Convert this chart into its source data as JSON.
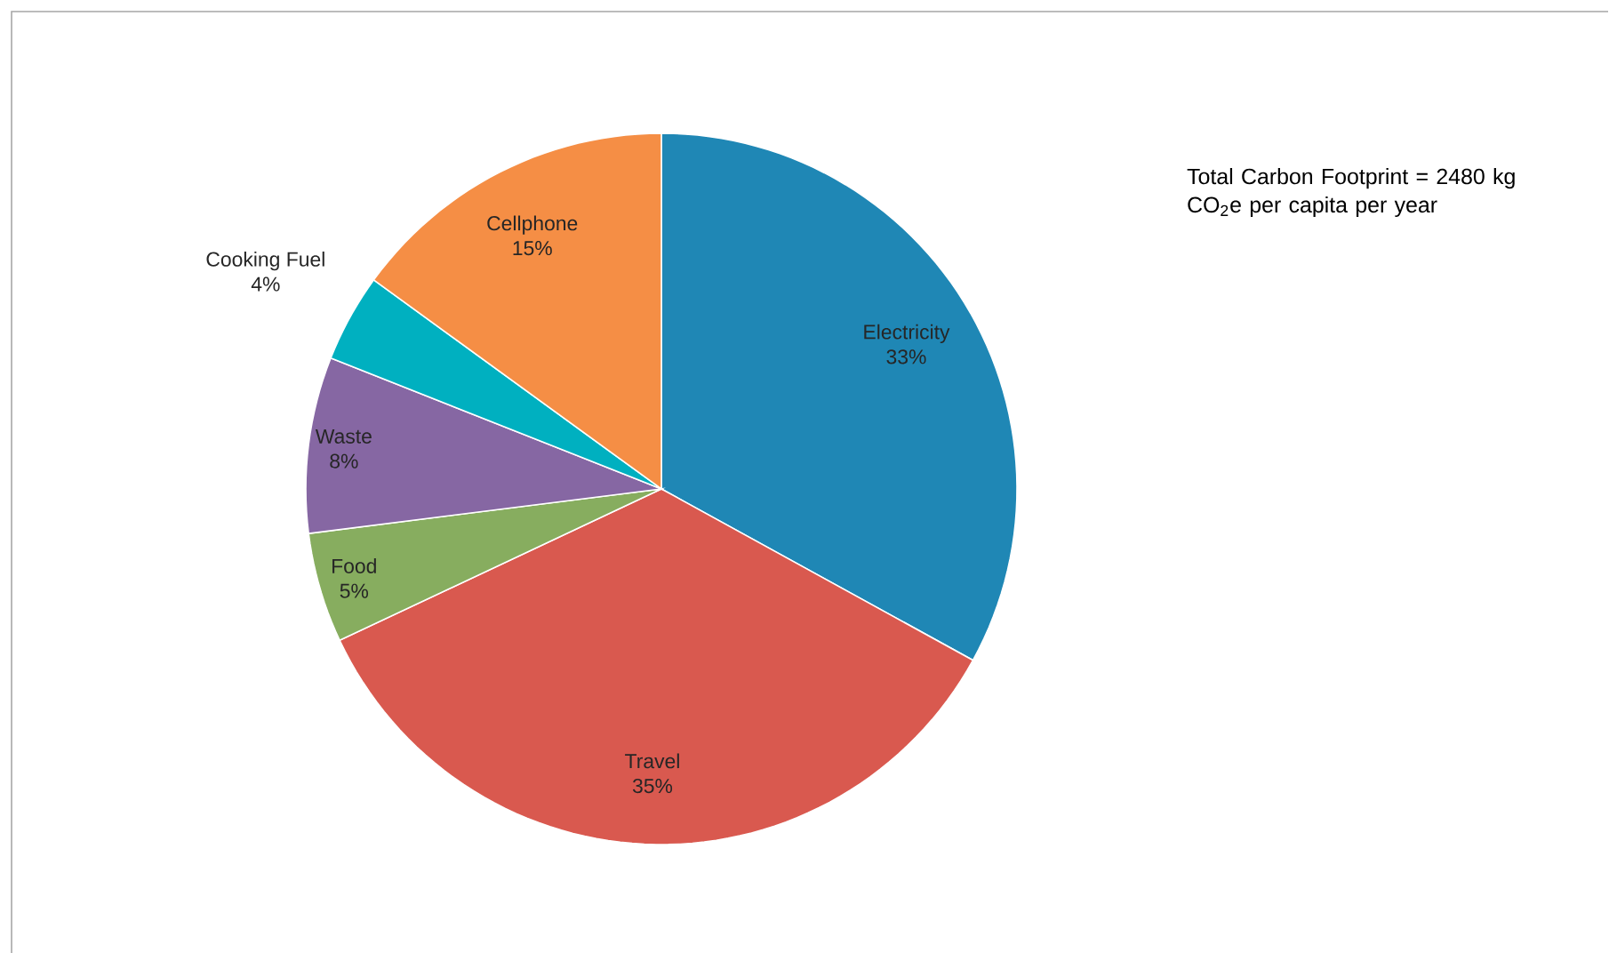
{
  "chart_data": {
    "type": "pie",
    "categories": [
      "Electricity",
      "Travel",
      "Food",
      "Waste",
      "Cooking Fuel",
      "Cellphone"
    ],
    "values": [
      33,
      35,
      5,
      8,
      4,
      15
    ],
    "value_labels": [
      "33%",
      "35%",
      "5%",
      "8%",
      "4%",
      "15%"
    ],
    "colors": [
      "#1f87b5",
      "#d9594f",
      "#87ad5f",
      "#8667a3",
      "#00b0c0",
      "#f58e45"
    ],
    "annotations": [
      "Total Carbon Footprint = 2480 kg  CO$_{2}$e per capita per year"
    ]
  }
}
